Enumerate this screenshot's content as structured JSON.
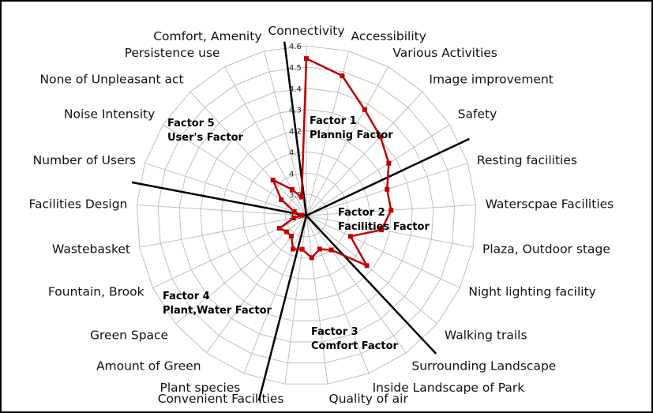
{
  "chart_data": {
    "type": "radar",
    "categories": [
      "Connectivity",
      "Accessibility",
      "Various Activities",
      "Image improvement",
      "Safety",
      "Resting facilities",
      "Waterscpae Facilities",
      "Plaza, Outdoor stage",
      "Night lighting facility",
      "Walking trails",
      "Surrounding Landscape",
      "Inside Landscape of Park",
      "Quality of air",
      "Convenient Facilities",
      "Plant species",
      "Amount of Green",
      "Green Space",
      "Fountain, Brook",
      "Wastebasket",
      "Facilities Design",
      "Number of Users",
      "Noise Intensity",
      "None of Unpleasant act",
      "Persistence use",
      "Comfort, Amenity"
    ],
    "values": [
      4.54,
      4.48,
      4.37,
      4.31,
      4.26,
      4.2,
      4.2,
      4.16,
      4.03,
      4.17,
      4.0,
      3.97,
      4.0,
      3.96,
      3.97,
      3.92,
      3.92,
      3.94,
      3.86,
      3.82,
      3.86,
      3.94,
      4.03,
      3.94,
      3.89
    ],
    "rlim": [
      3.8,
      4.6
    ],
    "ticks": [
      "3.8",
      "3.9",
      "4",
      "4.1",
      "4.2",
      "4.3",
      "4.4",
      "4.5",
      "4.6"
    ],
    "grid": true,
    "line_color": "#c00000",
    "factors": [
      {
        "line1": "Factor 1",
        "line2": "Plannig Factor"
      },
      {
        "line1": "Factor 2",
        "line2": "Facilities Factor"
      },
      {
        "line1": "Factor 3",
        "line2": "Comfort Factor"
      },
      {
        "line1": "Factor 4",
        "line2": "Plant,Water Factor"
      },
      {
        "line1": "Factor 5",
        "line2": "User's Factor"
      }
    ],
    "divider_after_category_index": [
      4,
      9,
      13,
      19,
      24
    ]
  }
}
